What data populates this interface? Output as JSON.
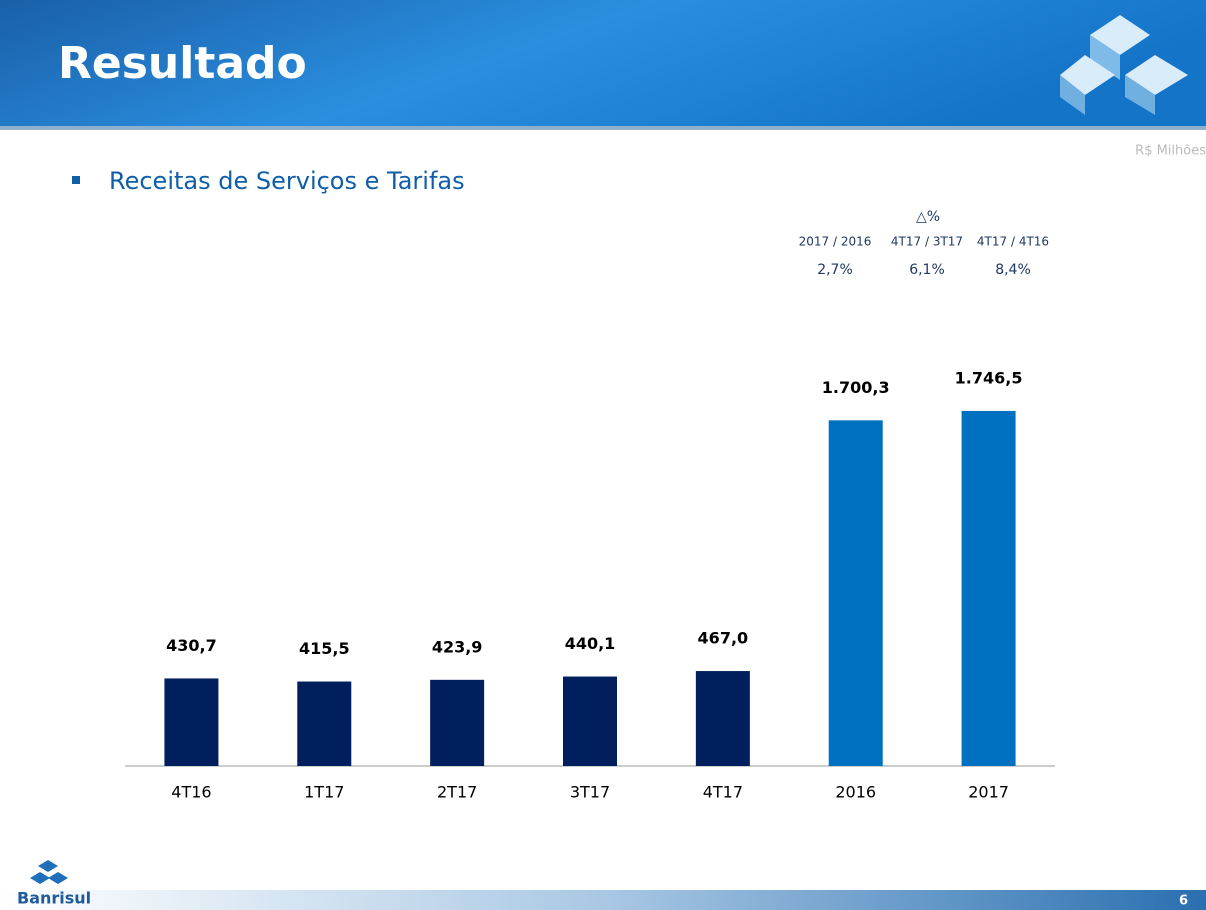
{
  "header": {
    "title": "Resultado",
    "unit": "R$ Milhões"
  },
  "subtitle": "Receitas de Serviços e Tarifas",
  "variation": {
    "symbol": "△%",
    "headers": [
      "2017 / 2016",
      "4T17 / 3T17",
      "4T17 / 4T16"
    ],
    "values": [
      "2,7%",
      "6,1%",
      "8,4%"
    ]
  },
  "chart_data": {
    "type": "bar",
    "categories": [
      "4T16",
      "1T17",
      "2T17",
      "3T17",
      "4T17",
      "2016",
      "2017"
    ],
    "values": [
      430.7,
      415.5,
      423.9,
      440.1,
      467.0,
      1700.3,
      1746.5
    ],
    "value_labels": [
      "430,7",
      "415,5",
      "423,9",
      "440,1",
      "467,0",
      "1.700,3",
      "1.746,5"
    ],
    "colors": [
      "#001f5c",
      "#001f5c",
      "#001f5c",
      "#001f5c",
      "#001f5c",
      "#0070c0",
      "#0070c0"
    ],
    "ylim": [
      0,
      2000
    ]
  },
  "footer": {
    "brand": "Banrisul",
    "page": "6"
  }
}
